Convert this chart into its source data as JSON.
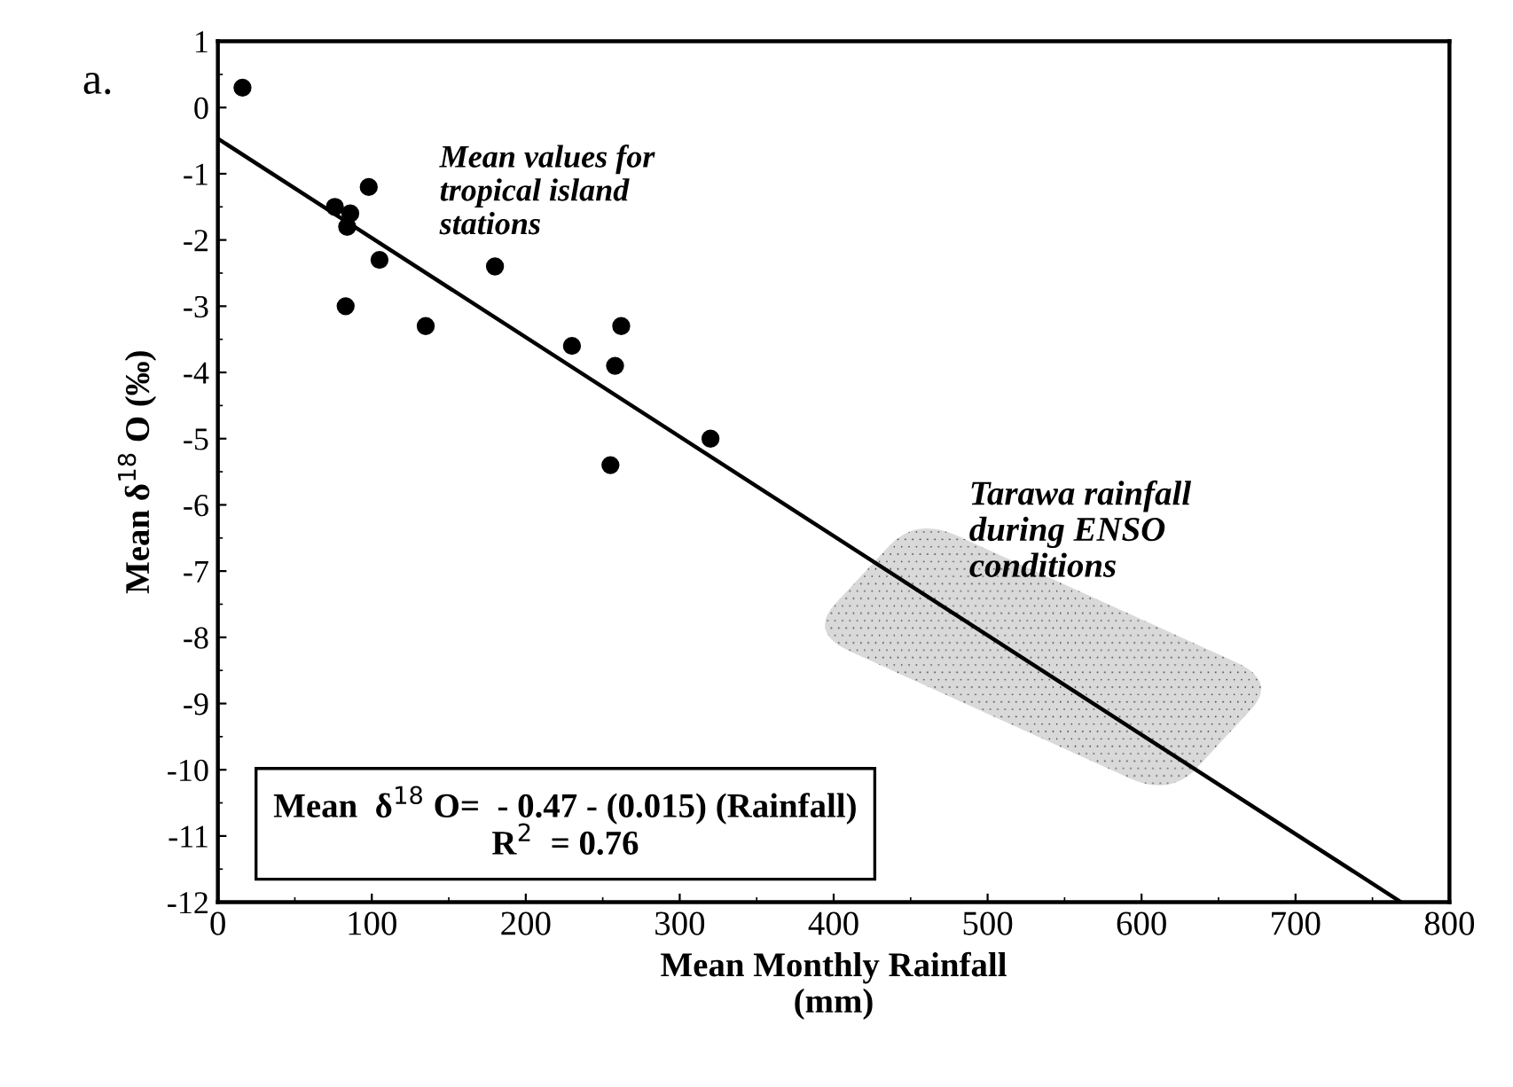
{
  "chart_data": {
    "type": "scatter",
    "xlabel": "Mean Monthly Rainfall\n(mm)",
    "ylabel": "Mean δ$^{18}$ O (‰)",
    "series": [
      {
        "color": "#000000",
        "marker": "circle",
        "x": [
          16,
          76,
          86,
          84,
          98,
          105,
          83,
          135,
          180,
          230,
          262,
          258,
          255,
          320
        ],
        "values": [
          0.3,
          -1.5,
          -1.6,
          -1.8,
          -1.2,
          -2.3,
          -3.0,
          -3.3,
          -2.4,
          -3.6,
          -3.3,
          -3.9,
          -5.4,
          -5.0
        ]
      },
      {
        "type": "line",
        "color": "#000000",
        "marker": "none",
        "x": [
          0,
          768
        ],
        "values": [
          -0.47,
          -11.99
        ]
      }
    ],
    "xlim": [
      0,
      800
    ],
    "xticks": [
      0,
      100,
      200,
      300,
      400,
      500,
      600,
      700,
      800
    ],
    "ylim": [
      -12,
      1
    ],
    "yticks": [
      1,
      0,
      {
        "value": -1,
        "label": "-1"
      },
      {
        "value": -2,
        "label": "-2"
      },
      {
        "value": -3,
        "label": "-3"
      },
      {
        "value": -4,
        "label": "-4"
      },
      {
        "value": -5,
        "label": "-5"
      },
      {
        "value": -6,
        "label": "-6"
      },
      {
        "value": -7,
        "label": "-7"
      },
      {
        "value": -8,
        "label": "-8"
      },
      {
        "value": -9,
        "label": "-9"
      },
      {
        "value": -10,
        "label": "-10"
      },
      {
        "value": -11,
        "label": "-11"
      },
      {
        "value": -12,
        "label": "-12"
      }
    ],
    "grid": false,
    "legend": false,
    "annotations": [
      "a.",
      "Mean values for\ntropical island\nstations",
      "Tarawa rainfall\nduring ENSO\nconditions",
      "Mean  δ$^{18}$ O=  - 0.47 - (0.015) (Rainfall)\nR$^{2}$  = 0.76"
    ]
  }
}
